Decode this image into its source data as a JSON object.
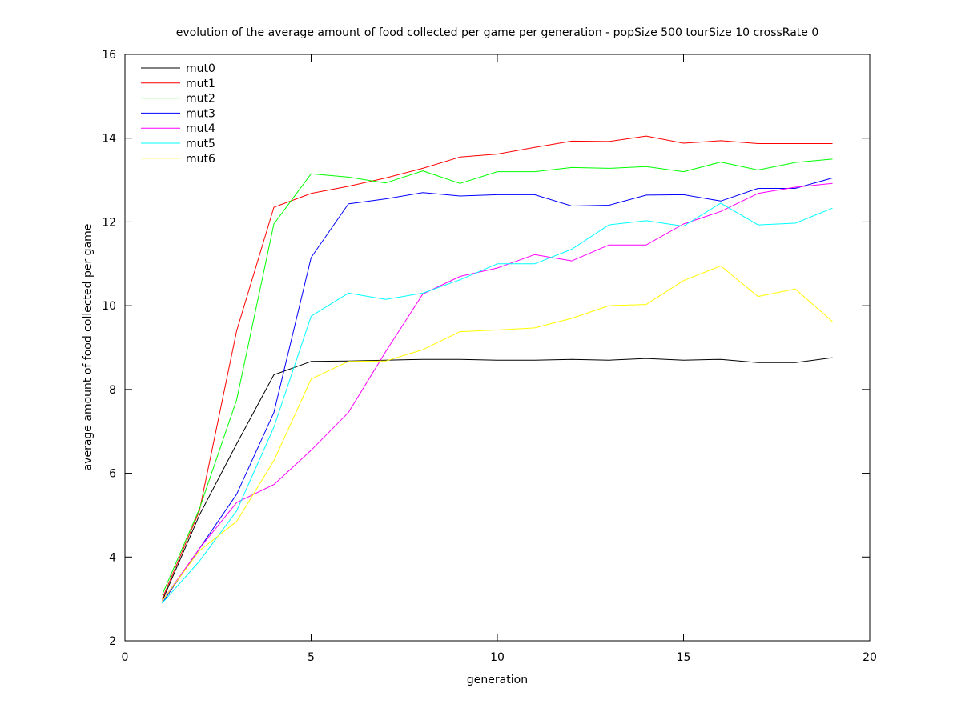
{
  "chart_data": {
    "type": "line",
    "title": "evolution of the average amount of food collected per game per generation - popSize 500 tourSize 10 crossRate 0",
    "xlabel": "generation",
    "ylabel": "average amount of food collected per game",
    "xlim": [
      0,
      20
    ],
    "ylim": [
      2,
      16
    ],
    "xticks": [
      "0",
      "5",
      "10",
      "15",
      "20"
    ],
    "yticks": [
      "2",
      "4",
      "6",
      "8",
      "10",
      "12",
      "14",
      "16"
    ],
    "grid": false,
    "legend_position": "top-left",
    "x": [
      1,
      2,
      3,
      4,
      5,
      6,
      7,
      8,
      9,
      10,
      11,
      12,
      13,
      14,
      15,
      16,
      17,
      18,
      19
    ],
    "series": [
      {
        "name": "mut0",
        "color": "#000000",
        "values": [
          2.95,
          5.0,
          6.7,
          8.35,
          8.67,
          8.68,
          8.7,
          8.72,
          8.72,
          8.7,
          8.7,
          8.72,
          8.7,
          8.74,
          8.7,
          8.72,
          8.64,
          8.64,
          8.76
        ]
      },
      {
        "name": "mut1",
        "color": "#ff0000",
        "values": [
          3.0,
          5.1,
          9.4,
          12.35,
          12.68,
          12.85,
          13.05,
          13.28,
          13.55,
          13.62,
          13.78,
          13.93,
          13.92,
          14.05,
          13.88,
          13.94,
          13.87,
          13.87,
          13.87
        ]
      },
      {
        "name": "mut2",
        "color": "#00ff00",
        "values": [
          3.1,
          5.15,
          7.75,
          11.95,
          13.15,
          13.07,
          12.93,
          13.22,
          12.92,
          13.2,
          13.2,
          13.3,
          13.28,
          13.32,
          13.2,
          13.43,
          13.24,
          13.42,
          13.5
        ]
      },
      {
        "name": "mut3",
        "color": "#0000ff",
        "values": [
          2.9,
          4.2,
          5.5,
          7.45,
          11.15,
          12.43,
          12.55,
          12.7,
          12.62,
          12.65,
          12.65,
          12.38,
          12.4,
          12.64,
          12.65,
          12.5,
          12.8,
          12.8,
          13.05
        ]
      },
      {
        "name": "mut4",
        "color": "#ff00ff",
        "values": [
          2.95,
          4.2,
          5.3,
          5.73,
          6.55,
          7.45,
          8.9,
          10.28,
          10.7,
          10.9,
          11.22,
          11.07,
          11.45,
          11.45,
          11.95,
          12.25,
          12.68,
          12.83,
          12.92
        ]
      },
      {
        "name": "mut5",
        "color": "#00ffff",
        "values": [
          2.9,
          3.9,
          5.1,
          7.1,
          9.75,
          10.3,
          10.15,
          10.3,
          10.62,
          11.0,
          11.0,
          11.35,
          11.93,
          12.03,
          11.9,
          12.45,
          11.93,
          11.97,
          12.33
        ]
      },
      {
        "name": "mut6",
        "color": "#ffff00",
        "values": [
          2.95,
          4.15,
          4.85,
          6.3,
          8.25,
          8.67,
          8.68,
          8.95,
          9.38,
          9.42,
          9.47,
          9.7,
          10.0,
          10.03,
          10.6,
          10.95,
          10.22,
          10.4,
          9.62
        ]
      }
    ]
  }
}
